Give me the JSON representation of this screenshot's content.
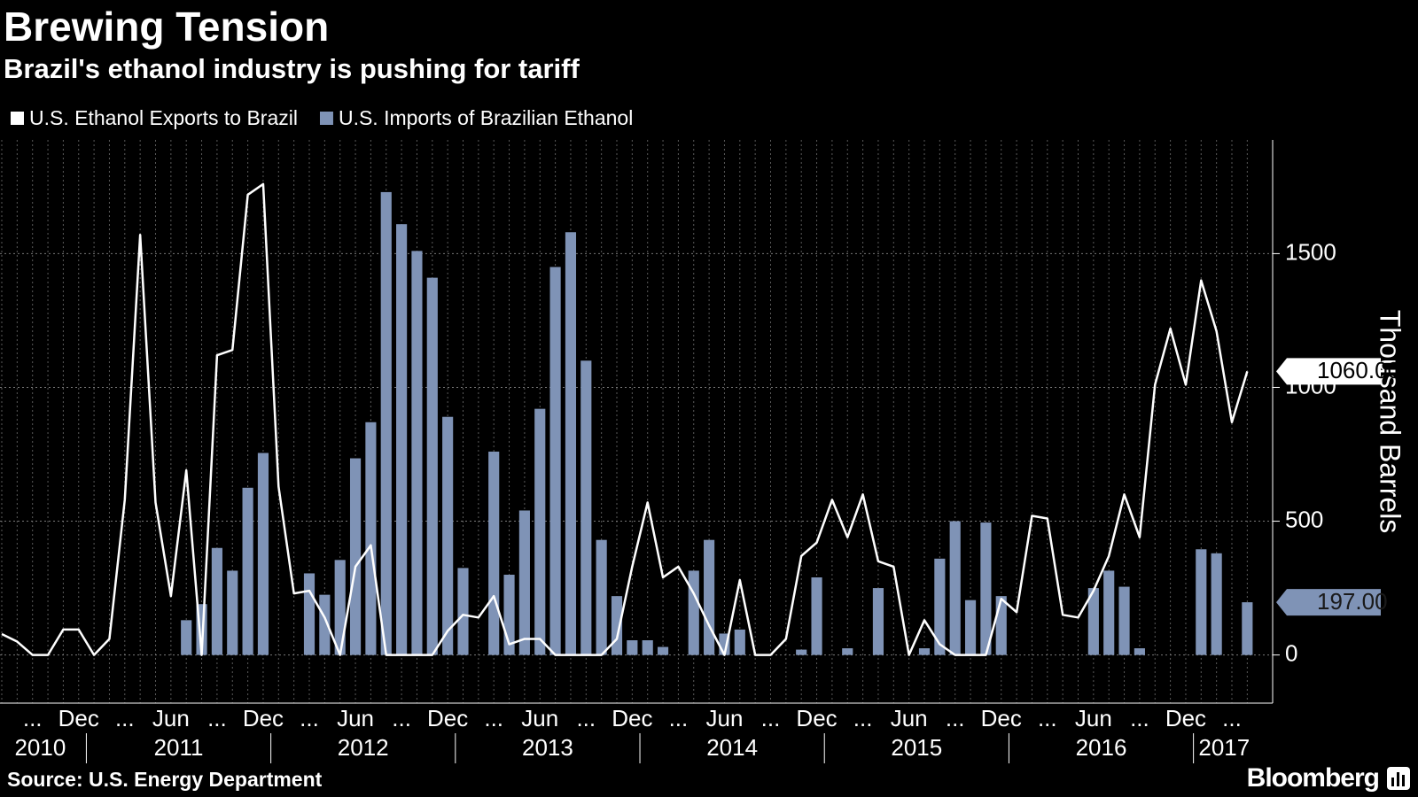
{
  "chart_data": {
    "type": "combo",
    "title": "Brewing Tension",
    "subtitle": "Brazil's ethanol industry is pushing for tariff",
    "source": "Source: U.S. Energy Department",
    "brand": "Bloomberg",
    "y_axis_label": "Thousand Barrels",
    "x": [
      "2010-07",
      "2010-08",
      "2010-09",
      "2010-10",
      "2010-11",
      "2010-12",
      "2011-01",
      "2011-02",
      "2011-03",
      "2011-04",
      "2011-05",
      "2011-06",
      "2011-07",
      "2011-08",
      "2011-09",
      "2011-10",
      "2011-11",
      "2011-12",
      "2012-01",
      "2012-02",
      "2012-03",
      "2012-04",
      "2012-05",
      "2012-06",
      "2012-07",
      "2012-08",
      "2012-09",
      "2012-10",
      "2012-11",
      "2012-12",
      "2013-01",
      "2013-02",
      "2013-03",
      "2013-04",
      "2013-05",
      "2013-06",
      "2013-07",
      "2013-08",
      "2013-09",
      "2013-10",
      "2013-11",
      "2013-12",
      "2014-01",
      "2014-02",
      "2014-03",
      "2014-04",
      "2014-05",
      "2014-06",
      "2014-07",
      "2014-08",
      "2014-09",
      "2014-10",
      "2014-11",
      "2014-12",
      "2015-01",
      "2015-02",
      "2015-03",
      "2015-04",
      "2015-05",
      "2015-06",
      "2015-07",
      "2015-08",
      "2015-09",
      "2015-10",
      "2015-11",
      "2015-12",
      "2016-01",
      "2016-02",
      "2016-03",
      "2016-04",
      "2016-05",
      "2016-06",
      "2016-07",
      "2016-08",
      "2016-09",
      "2016-10",
      "2016-11",
      "2016-12",
      "2017-01",
      "2017-02",
      "2017-03",
      "2017-04"
    ],
    "xticks": [
      {
        "value": "2010-09",
        "label": "..."
      },
      {
        "value": "2010-12",
        "label": "Dec"
      },
      {
        "value": "2011-03",
        "label": "..."
      },
      {
        "value": "2011-06",
        "label": "Jun"
      },
      {
        "value": "2011-09",
        "label": "..."
      },
      {
        "value": "2011-12",
        "label": "Dec"
      },
      {
        "value": "2012-03",
        "label": "..."
      },
      {
        "value": "2012-06",
        "label": "Jun"
      },
      {
        "value": "2012-09",
        "label": "..."
      },
      {
        "value": "2012-12",
        "label": "Dec"
      },
      {
        "value": "2013-03",
        "label": "..."
      },
      {
        "value": "2013-06",
        "label": "Jun"
      },
      {
        "value": "2013-09",
        "label": "..."
      },
      {
        "value": "2013-12",
        "label": "Dec"
      },
      {
        "value": "2014-03",
        "label": "..."
      },
      {
        "value": "2014-06",
        "label": "Jun"
      },
      {
        "value": "2014-09",
        "label": "..."
      },
      {
        "value": "2014-12",
        "label": "Dec"
      },
      {
        "value": "2015-03",
        "label": "..."
      },
      {
        "value": "2015-06",
        "label": "Jun"
      },
      {
        "value": "2015-09",
        "label": "..."
      },
      {
        "value": "2015-12",
        "label": "Dec"
      },
      {
        "value": "2016-03",
        "label": "..."
      },
      {
        "value": "2016-06",
        "label": "Jun"
      },
      {
        "value": "2016-09",
        "label": "..."
      },
      {
        "value": "2016-12",
        "label": "Dec"
      },
      {
        "value": "2017-03",
        "label": "..."
      }
    ],
    "years": [
      "2010",
      "2011",
      "2012",
      "2013",
      "2014",
      "2015",
      "2016",
      "2017"
    ],
    "ylim": [
      -180,
      1925
    ],
    "yticks": [
      0,
      500,
      1000,
      1500
    ],
    "grid": true,
    "series": [
      {
        "name": "U.S. Ethanol Exports to Brazil",
        "type": "line",
        "color": "#ffffff",
        "label_color": "#ffffff",
        "label_text_color": "#000000",
        "values": [
          78,
          50,
          0,
          0,
          95,
          95,
          0,
          60,
          580,
          1570,
          570,
          220,
          690,
          0,
          1120,
          1140,
          1720,
          1760,
          630,
          230,
          240,
          140,
          0,
          330,
          410,
          0,
          0,
          0,
          0,
          90,
          150,
          140,
          220,
          40,
          60,
          60,
          0,
          0,
          0,
          0,
          60,
          330,
          570,
          290,
          330,
          230,
          110,
          0,
          280,
          0,
          0,
          60,
          370,
          420,
          580,
          440,
          600,
          350,
          330,
          0,
          130,
          40,
          0,
          0,
          0,
          210,
          160,
          520,
          510,
          150,
          140,
          240,
          370,
          600,
          440,
          1010,
          1220,
          1010,
          1400,
          1210,
          870,
          1060
        ],
        "value_labels": [
          null,
          null,
          null,
          null,
          null,
          null,
          null,
          null,
          null,
          null,
          null,
          null,
          null,
          null,
          null,
          null,
          null,
          null,
          null,
          null,
          null,
          null,
          null,
          null,
          null,
          null,
          null,
          null,
          null,
          null,
          null,
          null,
          null,
          null,
          null,
          null,
          null,
          null,
          null,
          null,
          null,
          null,
          null,
          null,
          null,
          null,
          null,
          null,
          null,
          null,
          null,
          null,
          null,
          null,
          null,
          null,
          null,
          null,
          null,
          null,
          null,
          null,
          null,
          null,
          null,
          null,
          null,
          null,
          null,
          null,
          null,
          null,
          null,
          null,
          null,
          null,
          null,
          null,
          null,
          null,
          null,
          "1060.00"
        ]
      },
      {
        "name": "U.S. Imports of Brazilian Ethanol",
        "type": "bar",
        "color": "#7f93b6",
        "label_color": "#7f93b6",
        "label_text_color": "#1a1a1a",
        "values": [
          0,
          0,
          0,
          0,
          0,
          0,
          0,
          0,
          0,
          0,
          0,
          0,
          130,
          190,
          400,
          315,
          625,
          755,
          0,
          0,
          305,
          225,
          355,
          735,
          870,
          1730,
          1610,
          1510,
          1410,
          890,
          325,
          0,
          760,
          300,
          540,
          920,
          1450,
          1580,
          1100,
          430,
          220,
          55,
          55,
          30,
          0,
          315,
          430,
          80,
          95,
          0,
          0,
          0,
          20,
          290,
          0,
          25,
          0,
          250,
          0,
          0,
          25,
          360,
          500,
          205,
          495,
          220,
          0,
          0,
          0,
          0,
          0,
          250,
          315,
          255,
          25,
          0,
          0,
          0,
          395,
          380,
          0,
          197
        ],
        "value_labels": [
          null,
          null,
          null,
          null,
          null,
          null,
          null,
          null,
          null,
          null,
          null,
          null,
          null,
          null,
          null,
          null,
          null,
          null,
          null,
          null,
          null,
          null,
          null,
          null,
          null,
          null,
          null,
          null,
          null,
          null,
          null,
          null,
          null,
          null,
          null,
          null,
          null,
          null,
          null,
          null,
          null,
          null,
          null,
          null,
          null,
          null,
          null,
          null,
          null,
          null,
          null,
          null,
          null,
          null,
          null,
          null,
          null,
          null,
          null,
          null,
          null,
          null,
          null,
          null,
          null,
          null,
          null,
          null,
          null,
          null,
          null,
          null,
          null,
          null,
          null,
          null,
          null,
          null,
          null,
          null,
          null,
          "197.00"
        ]
      }
    ]
  }
}
